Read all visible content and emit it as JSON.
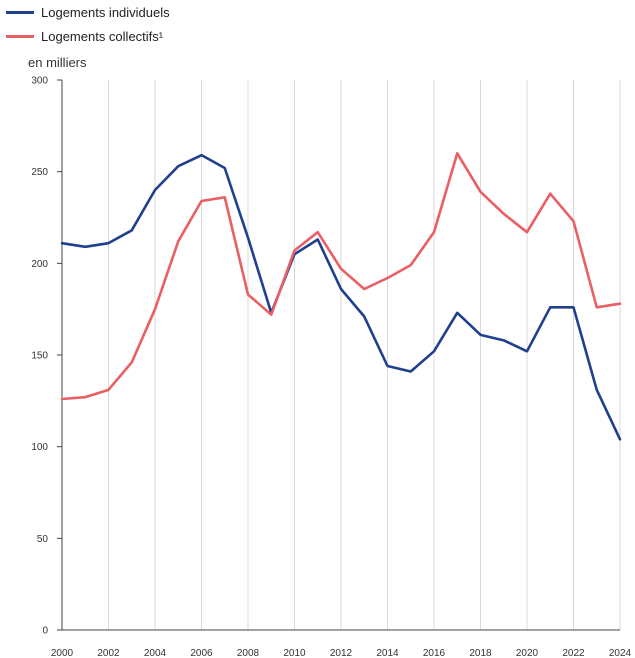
{
  "chart_data": {
    "type": "line",
    "ylabel": "en milliers",
    "ylim": [
      0,
      300
    ],
    "yticks": [
      0,
      50,
      100,
      150,
      200,
      250,
      300
    ],
    "xlim": [
      2000,
      2024
    ],
    "xticks": [
      2000,
      2002,
      2004,
      2006,
      2008,
      2010,
      2012,
      2014,
      2016,
      2018,
      2020,
      2022,
      2024
    ],
    "x": [
      2000,
      2001,
      2002,
      2003,
      2004,
      2005,
      2006,
      2007,
      2008,
      2009,
      2010,
      2011,
      2012,
      2013,
      2014,
      2015,
      2016,
      2017,
      2018,
      2019,
      2020,
      2021,
      2022,
      2023,
      2024
    ],
    "grid": "vertical",
    "legend_position": "top-left",
    "series": [
      {
        "name": "Logements individuels",
        "color": "#1f3f8f",
        "values": [
          211,
          209,
          211,
          218,
          240,
          253,
          259,
          252,
          214,
          173,
          205,
          213,
          186,
          171,
          144,
          141,
          152,
          173,
          161,
          158,
          152,
          176,
          176,
          131,
          104
        ]
      },
      {
        "name": "Logements collectifs¹",
        "color": "#e95f63",
        "values": [
          126,
          127,
          131,
          146,
          175,
          212,
          234,
          236,
          183,
          172,
          207,
          217,
          197,
          186,
          192,
          199,
          217,
          260,
          239,
          227,
          217,
          238,
          223,
          176,
          178
        ]
      }
    ]
  }
}
